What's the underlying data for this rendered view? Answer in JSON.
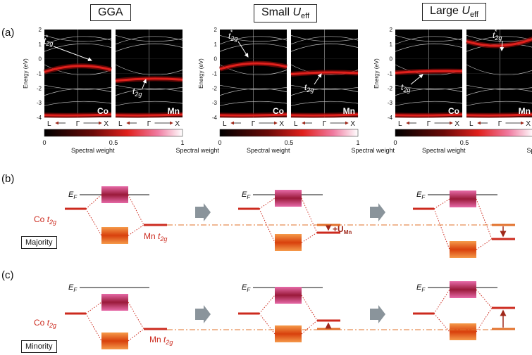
{
  "panel_labels": {
    "a": "(a)",
    "b": "(b)",
    "c": "(c)"
  },
  "headers": {
    "gga": "GGA",
    "small_prefix": "Small ",
    "large_prefix": "Large ",
    "u_symbol": "U",
    "u_sub": "eff"
  },
  "axis": {
    "ylabel": "Energy (eV)",
    "yticks": [
      "2",
      "1",
      "0",
      "-1",
      "-2",
      "-3",
      "-4"
    ],
    "kpoints": [
      "L",
      "Γ",
      "X"
    ]
  },
  "atoms": {
    "co": "Co",
    "mn": "Mn"
  },
  "t2g": {
    "base": "t",
    "sub": "2g",
    "star": "*"
  },
  "colorbar": {
    "ticks": [
      "0",
      "0.5",
      "1"
    ],
    "label": "Spectral weight"
  },
  "levels": {
    "ef": "E",
    "ef_sub": "F",
    "co_label": "Co",
    "mn_label": "Mn",
    "u_label": "+U",
    "u_sub": "Mn"
  },
  "spins": {
    "majority": "Majority",
    "minority": "Minority"
  },
  "colors": {
    "band_red": "#e0201c",
    "level_red": "#cc2a1e",
    "level_orange": "#e2702a",
    "box_top": "#c0307a",
    "box_bottom": "#e86a22",
    "arrow_gray": "#8a949b"
  }
}
